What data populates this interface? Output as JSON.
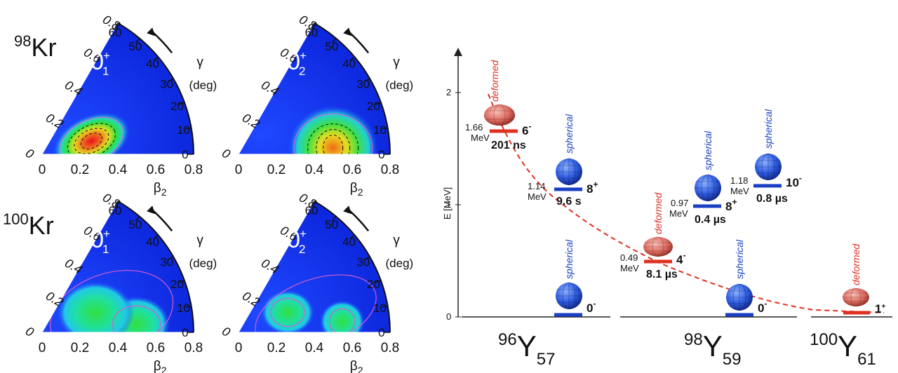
{
  "left": {
    "nuclei": [
      {
        "mass": "98",
        "symbol": "Kr"
      },
      {
        "mass": "100",
        "symbol": "Kr"
      }
    ],
    "beta_ticks": [
      "0",
      "0.2",
      "0.4",
      "0.6",
      "0.8"
    ],
    "radial_ticks": [
      "0",
      "0.2",
      "0.4",
      "0.6",
      "0.8"
    ],
    "gamma_ticks": [
      "0",
      "10",
      "20",
      "30",
      "40",
      "50",
      "60"
    ],
    "beta_label": "β",
    "beta_sub": "2",
    "gamma_label": "γ",
    "gamma_unit": "(deg)",
    "panels": [
      {
        "state": "0",
        "sup": "+",
        "sub": "1"
      },
      {
        "state": "0",
        "sup": "+",
        "sub": "2"
      },
      {
        "state": "0",
        "sup": "+",
        "sub": "1"
      },
      {
        "state": "0",
        "sup": "+",
        "sub": "2"
      }
    ]
  },
  "right": {
    "y_axis_label": "E [MeV]",
    "y_ticks": [
      "0",
      "1",
      "2"
    ],
    "nuclides": [
      {
        "mass": "96",
        "symbol": "Y",
        "n": "57"
      },
      {
        "mass": "98",
        "symbol": "Y",
        "n": "59"
      },
      {
        "mass": "100",
        "symbol": "Y",
        "n": "61"
      }
    ],
    "levels": [
      {
        "energy": "1.66",
        "unit": "MeV",
        "spin": "6",
        "parity": "-",
        "life": "201 ns",
        "shape": "deformed"
      },
      {
        "energy": "1.14",
        "unit": "MeV",
        "spin": "8",
        "parity": "+",
        "life": "9.6 s",
        "shape": "spherical"
      },
      {
        "spin": "0",
        "parity": "-",
        "shape": "spherical"
      },
      {
        "energy": "0.49",
        "unit": "MeV",
        "spin": "4",
        "parity": "-",
        "life": "8.1 µs",
        "shape": "deformed"
      },
      {
        "energy": "0.97",
        "unit": "MeV",
        "spin": "8",
        "parity": "+",
        "life": "0.4 µs",
        "shape": "spherical"
      },
      {
        "energy": "1.18",
        "unit": "MeV",
        "spin": "10",
        "parity": "-",
        "life": "0.8 µs",
        "shape": "spherical"
      },
      {
        "spin": "0",
        "parity": "-",
        "shape": "spherical"
      },
      {
        "spin": "1",
        "parity": "+",
        "shape": "deformed"
      }
    ],
    "colors": {
      "deformed": "#e03020",
      "spherical": "#1a3fc4"
    }
  }
}
